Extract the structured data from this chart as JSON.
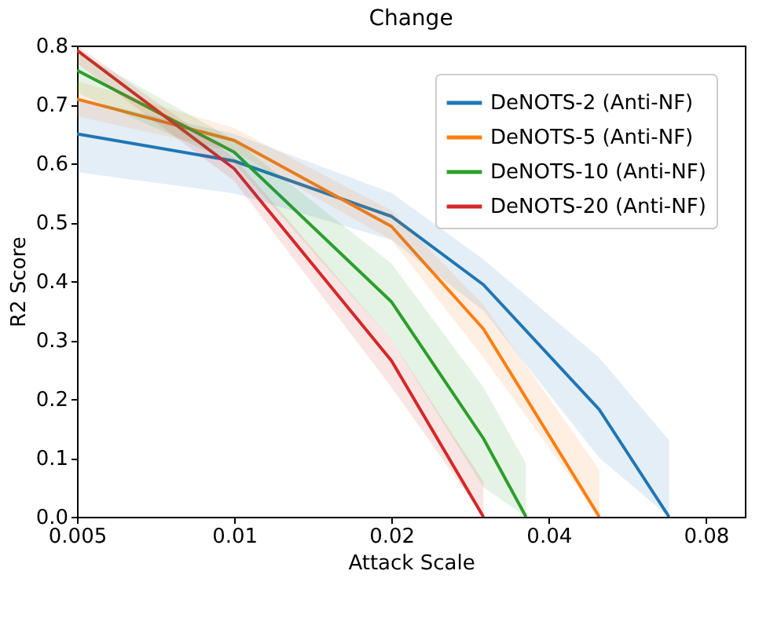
{
  "chart_data": {
    "type": "line",
    "title": "Change",
    "xlabel": "Attack Scale",
    "ylabel": "R2 Score",
    "log": "x",
    "xlim": [
      0.005,
      0.095
    ],
    "xticks": [
      0.005,
      0.01,
      0.02,
      0.04,
      0.08
    ],
    "ylim": [
      0,
      0.8
    ],
    "yticks": [
      {
        "value": 0,
        "label": "0.0"
      },
      0.1,
      0.2,
      0.3,
      0.4,
      0.5,
      0.6,
      0.7,
      0.8
    ],
    "grid": false,
    "legend": "top right",
    "marker": "none",
    "line_style": "solid",
    "series": [
      {
        "name": "DeNOTS-2 (Anti-NF)",
        "color": "#1f77b4",
        "x": [
          0.005,
          0.01,
          0.02,
          0.03,
          0.05,
          0.068
        ],
        "values": [
          0.65,
          0.604,
          0.51,
          0.394,
          0.182,
          0
        ],
        "lower": [
          0.585,
          0.549,
          0.47,
          0.35,
          0.1,
          0
        ],
        "upper": [
          0.71,
          0.65,
          0.55,
          0.437,
          0.27,
          0.13
        ]
      },
      {
        "name": "DeNOTS-5 (Anti-NF)",
        "color": "#ff7f0e",
        "x": [
          0.005,
          0.01,
          0.02,
          0.03,
          0.05
        ],
        "values": [
          0.709,
          0.639,
          0.493,
          0.319,
          0
        ],
        "lower": [
          0.68,
          0.62,
          0.47,
          0.27,
          0
        ],
        "upper": [
          0.74,
          0.66,
          0.52,
          0.36,
          0.08
        ]
      },
      {
        "name": "DeNOTS-10 (Anti-NF)",
        "color": "#2ca02c",
        "x": [
          0.005,
          0.01,
          0.02,
          0.03,
          0.0362
        ],
        "values": [
          0.758,
          0.619,
          0.365,
          0.133,
          0
        ],
        "lower": [
          0.72,
          0.6,
          0.3,
          0.05,
          0
        ],
        "upper": [
          0.79,
          0.64,
          0.43,
          0.22,
          0.09
        ]
      },
      {
        "name": "DeNOTS-20 (Anti-NF)",
        "color": "#d62728",
        "x": [
          0.005,
          0.01,
          0.02,
          0.03
        ],
        "values": [
          0.792,
          0.591,
          0.265,
          0
        ],
        "lower": [
          0.77,
          0.57,
          0.22,
          0
        ],
        "upper": [
          0.8,
          0.61,
          0.3,
          0.06
        ]
      }
    ]
  }
}
